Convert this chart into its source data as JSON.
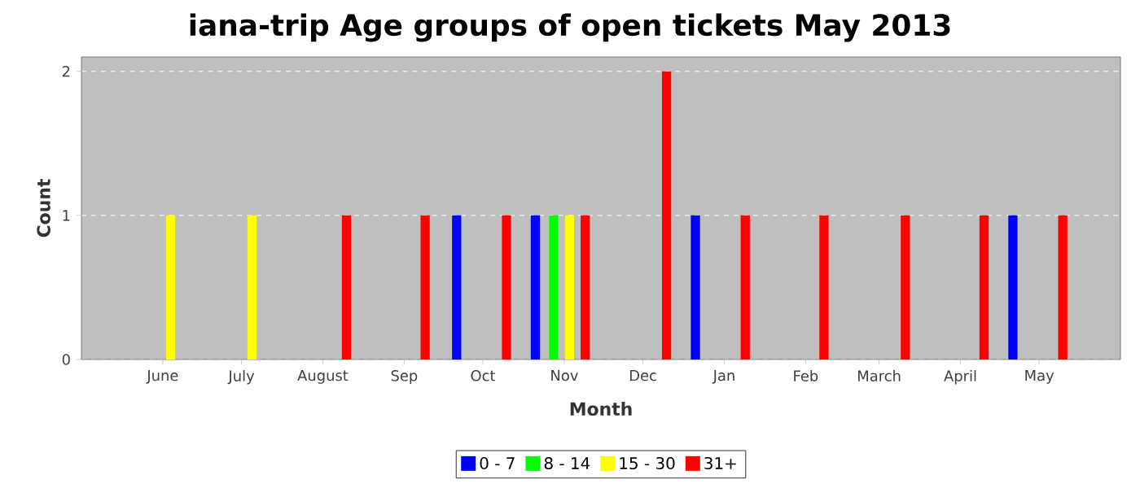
{
  "chart_data": {
    "type": "bar",
    "title": "iana-trip Age groups of open tickets May 2013",
    "xlabel": "Month",
    "ylabel": "Count",
    "series": [
      {
        "name": "0 - 7",
        "color": "#0000ff",
        "x": [
          "2012-09-21",
          "2012-10-21",
          "2012-12-21",
          "2013-04-21"
        ],
        "values": [
          1,
          1,
          1,
          1
        ]
      },
      {
        "name": "8 - 14",
        "color": "#00ff00",
        "x": [
          "2012-10-28"
        ],
        "values": [
          1
        ]
      },
      {
        "name": "15 - 30",
        "color": "#ffff00",
        "x": [
          "2012-06-04",
          "2012-07-05",
          "2012-11-03"
        ],
        "values": [
          1,
          1,
          1
        ]
      },
      {
        "name": "31+",
        "color": "#ff0000",
        "x": [
          "2012-08-10",
          "2012-09-09",
          "2012-10-10",
          "2012-11-09",
          "2012-12-10",
          "2013-01-09",
          "2013-02-08",
          "2013-03-11",
          "2013-04-10",
          "2013-05-10"
        ],
        "values": [
          1,
          1,
          1,
          1,
          2,
          1,
          1,
          1,
          1,
          1
        ]
      }
    ],
    "xlim": [
      "2012-05-01",
      "2013-06-01"
    ],
    "xticks": [
      {
        "value": "2012-06-01",
        "label": "June"
      },
      {
        "value": "2012-07-01",
        "label": "July"
      },
      {
        "value": "2012-08-01",
        "label": "August"
      },
      {
        "value": "2012-09-01",
        "label": "Sep"
      },
      {
        "value": "2012-10-01",
        "label": "Oct"
      },
      {
        "value": "2012-11-01",
        "label": "Nov"
      },
      {
        "value": "2012-12-01",
        "label": "Dec"
      },
      {
        "value": "2013-01-01",
        "label": "Jan"
      },
      {
        "value": "2013-02-01",
        "label": "Feb"
      },
      {
        "value": "2013-03-01",
        "label": "March"
      },
      {
        "value": "2013-04-01",
        "label": "April"
      },
      {
        "value": "2013-05-01",
        "label": "May"
      }
    ],
    "ylim": [
      0,
      2.1
    ],
    "yticks": [
      0,
      1,
      2
    ],
    "grid": "y",
    "legend": "bottom"
  }
}
